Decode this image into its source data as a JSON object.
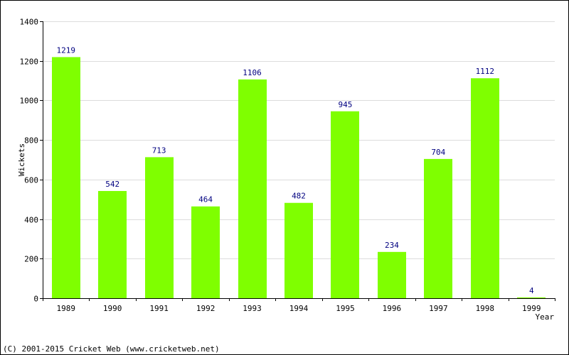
{
  "chart_data": {
    "type": "bar",
    "categories": [
      "1989",
      "1990",
      "1991",
      "1992",
      "1993",
      "1994",
      "1995",
      "1996",
      "1997",
      "1998",
      "1999"
    ],
    "values": [
      1219,
      542,
      713,
      464,
      1106,
      482,
      945,
      234,
      704,
      1112,
      4
    ],
    "data_labels": [
      "1219",
      "542",
      "713",
      "464",
      "1106",
      "482",
      "945",
      "234",
      "704",
      "1112",
      "4"
    ],
    "xlabel": "Year",
    "ylabel": "Wickets",
    "ylim": [
      0,
      1400
    ],
    "yticks": [
      0,
      200,
      400,
      600,
      800,
      1000,
      1200,
      1400
    ],
    "grid": true,
    "bar_color": "#7fff00",
    "label_color": "#000080"
  },
  "footer": {
    "copyright": "(C) 2001-2015 Cricket Web (www.cricketweb.net)"
  }
}
